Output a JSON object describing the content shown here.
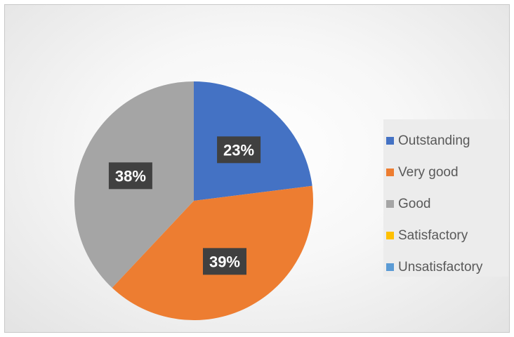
{
  "chart_data": {
    "type": "pie",
    "title": "",
    "categories": [
      "Outstanding",
      "Very good",
      "Good",
      "Satisfactory",
      "Unsatisfactory"
    ],
    "values": [
      23,
      39,
      38,
      0,
      0
    ],
    "data_labels": [
      "23%",
      "39%",
      "38%",
      "",
      ""
    ],
    "colors": [
      "#4472C4",
      "#ED7D31",
      "#A5A5A5",
      "#FFC000",
      "#5B9BD5"
    ],
    "legend_position": "right",
    "label_style": "dark boxes with white bold text"
  },
  "legend": {
    "items": [
      {
        "label": "Outstanding",
        "color": "#4472C4"
      },
      {
        "label": "Very good",
        "color": "#ED7D31"
      },
      {
        "label": "Good",
        "color": "#A5A5A5"
      },
      {
        "label": "Satisfactory",
        "color": "#FFC000"
      },
      {
        "label": "Unsatisfactory",
        "color": "#5B9BD5"
      }
    ]
  }
}
